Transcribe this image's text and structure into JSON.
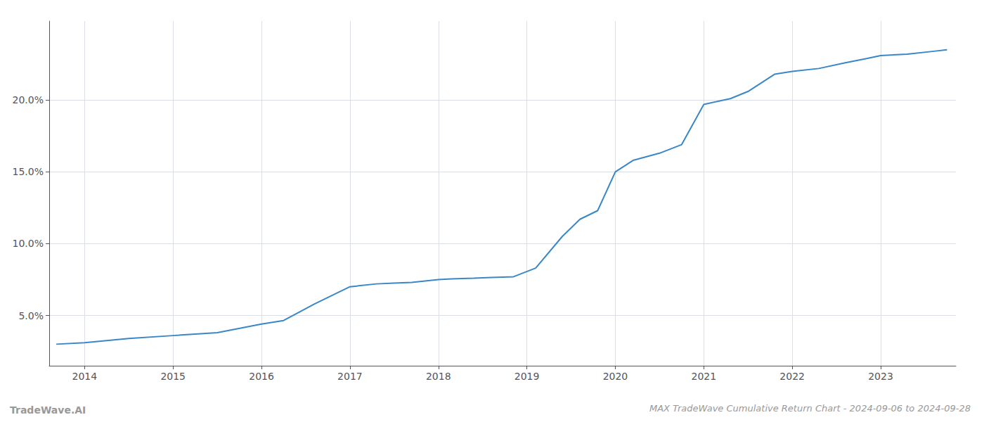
{
  "chart_data": {
    "type": "line",
    "title": "MAX TradeWave Cumulative Return Chart - 2024-09-06 to 2024-09-28",
    "annotations": [
      "TradeWave.AI"
    ],
    "x": [
      2013.68,
      2014.0,
      2014.5,
      2015.0,
      2015.5,
      2016.0,
      2016.25,
      2016.6,
      2017.0,
      2017.3,
      2017.5,
      2017.7,
      2018.0,
      2018.15,
      2018.4,
      2018.6,
      2018.85,
      2019.1,
      2019.4,
      2019.6,
      2019.8,
      2020.0,
      2020.2,
      2020.5,
      2020.75,
      2021.0,
      2021.3,
      2021.5,
      2021.8,
      2022.0,
      2022.3,
      2022.6,
      2022.85,
      2023.0,
      2023.3,
      2023.6,
      2023.75
    ],
    "values": [
      3.0,
      3.1,
      3.4,
      3.6,
      3.8,
      4.4,
      4.65,
      5.8,
      7.0,
      7.2,
      7.25,
      7.3,
      7.5,
      7.55,
      7.6,
      7.65,
      7.7,
      8.3,
      10.5,
      11.7,
      12.3,
      15.0,
      15.8,
      16.3,
      16.9,
      19.7,
      20.1,
      20.6,
      21.8,
      22.0,
      22.2,
      22.6,
      22.9,
      23.1,
      23.2,
      23.4,
      23.5
    ],
    "color": "#3a87c8",
    "xlim": [
      2013.6,
      2023.85
    ],
    "xticks": [
      2014,
      2015,
      2016,
      2017,
      2018,
      2019,
      2020,
      2021,
      2022,
      2023
    ],
    "ylim": [
      1.5,
      25.5
    ],
    "yticks": [
      {
        "value": 5.0,
        "label": "5.0%"
      },
      {
        "value": 10.0,
        "label": "10.0%"
      },
      {
        "value": 15.0,
        "label": "15.0%"
      },
      {
        "value": 20.0,
        "label": "20.0%"
      }
    ],
    "grid": true
  }
}
